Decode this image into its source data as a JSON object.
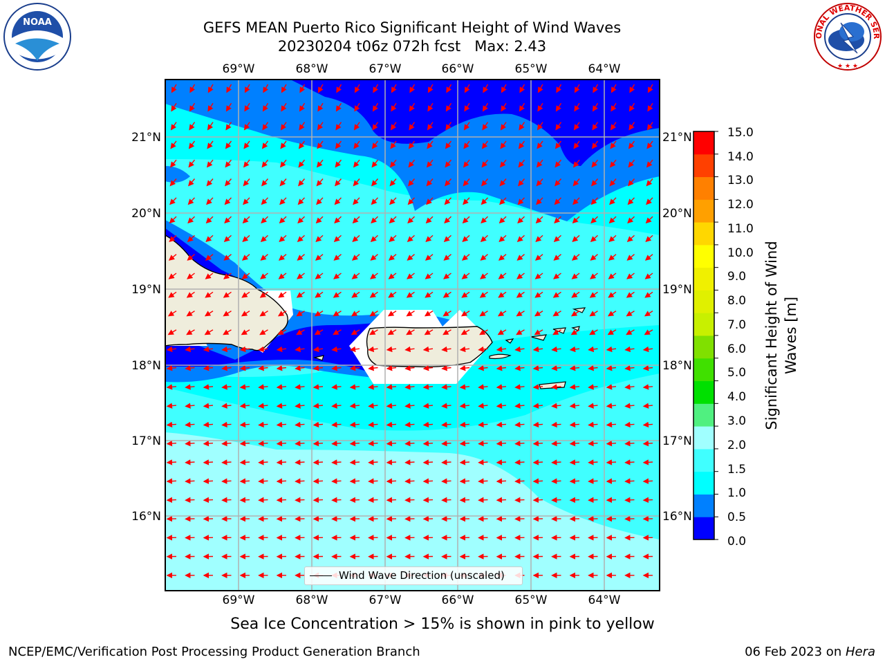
{
  "title": {
    "line1": "GEFS MEAN Puerto Rico Significant Height of Wind Waves",
    "line2": "20230204 t06z 072h fcst   Max: 2.43"
  },
  "logos": {
    "left": {
      "name": "NOAA",
      "icon": "noaa-logo"
    },
    "right": {
      "name": "NATIONAL WEATHER SERVICE",
      "icon": "nws-logo"
    }
  },
  "map": {
    "lon_ticks": [
      "69°W",
      "68°W",
      "67°W",
      "66°W",
      "65°W",
      "64°W"
    ],
    "lat_ticks": [
      "21°N",
      "20°N",
      "19°N",
      "18°N",
      "17°N",
      "16°N"
    ],
    "grid": true,
    "land_color": "#efeddc",
    "vector_color": "#ff0000"
  },
  "colorbar": {
    "label": "Significant Height of Wind Waves [m]",
    "label_line1": "Significant Height of Wind",
    "label_line2": "Waves [m]",
    "ticks": [
      "15.0",
      "14.0",
      "13.0",
      "12.0",
      "11.0",
      "10.0",
      "9.0",
      "8.0",
      "7.0",
      "6.0",
      "5.0",
      "4.0",
      "3.0",
      "2.0",
      "1.5",
      "1.0",
      "0.5",
      "0.0"
    ],
    "colors_bottom_to_top": [
      "#0000ff",
      "#0080ff",
      "#00ffff",
      "#40ffff",
      "#a0ffff",
      "#50f080",
      "#00e000",
      "#40e000",
      "#80e000",
      "#c8f000",
      "#e0f000",
      "#f0f000",
      "#ffff00",
      "#ffd700",
      "#ffa000",
      "#ff8000",
      "#ff4000",
      "#ff0000"
    ]
  },
  "legend": {
    "label": "Wind Wave Direction (unscaled)"
  },
  "footnote": "Sea Ice Concentration > 15% is shown in pink to yellow",
  "credit": "NCEP/EMC/Verification Post Processing Product Generation Branch",
  "date_stamp": {
    "date": "06 Feb 2023 on ",
    "machine": "Hera"
  }
}
